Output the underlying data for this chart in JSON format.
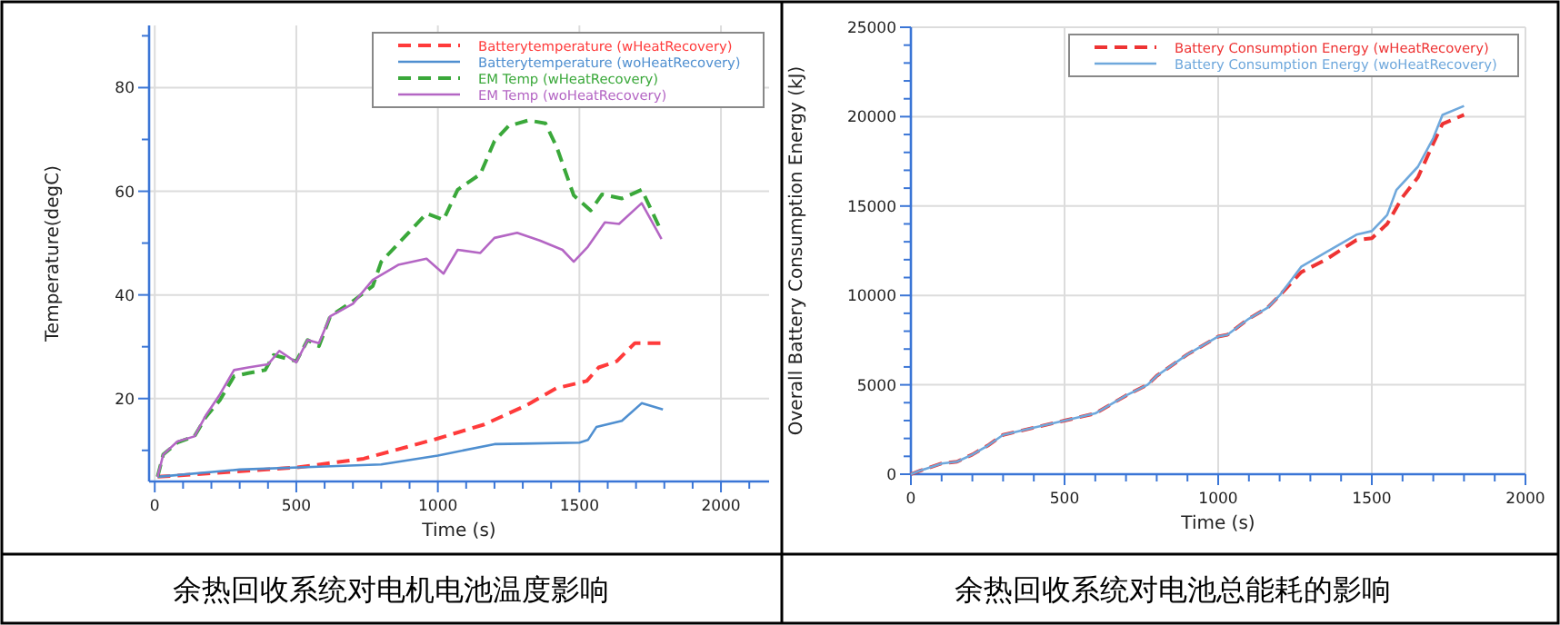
{
  "chart_data": [
    {
      "type": "line",
      "xlabel": "Time (s)",
      "ylabel": "Temperature(degC)",
      "annotations": [
        "余热回收系统对电机电池温度影响"
      ],
      "xlim": [
        -20,
        2170
      ],
      "ylim": [
        4,
        92
      ],
      "xticks": [
        0,
        {
          "value": 100,
          "label": null
        },
        {
          "value": 200,
          "label": null
        },
        {
          "value": 300,
          "label": null
        },
        {
          "value": 400,
          "label": null
        },
        500,
        {
          "value": 600,
          "label": null
        },
        {
          "value": 700,
          "label": null
        },
        {
          "value": 800,
          "label": null
        },
        {
          "value": 900,
          "label": null
        },
        1000,
        {
          "value": 1100,
          "label": null
        },
        {
          "value": 1200,
          "label": null
        },
        {
          "value": 1300,
          "label": null
        },
        {
          "value": 1400,
          "label": null
        },
        1500,
        {
          "value": 1600,
          "label": null
        },
        {
          "value": 1700,
          "label": null
        },
        {
          "value": 1800,
          "label": null
        },
        {
          "value": 1900,
          "label": null
        },
        2000,
        {
          "value": 2100,
          "label": null
        }
      ],
      "yticks": [
        {
          "value": 10,
          "label": null
        },
        20,
        {
          "value": 30,
          "label": null
        },
        40,
        {
          "value": 50,
          "label": null
        },
        60,
        {
          "value": 70,
          "label": null
        },
        80,
        {
          "value": 90,
          "label": null
        }
      ],
      "grid": true,
      "legend": "top right",
      "series": [
        {
          "name": "Batterytemperature (wHeatRecovery)",
          "color": "#ff3b3b",
          "line_style": "dashed",
          "x": [
            10,
            500,
            738,
            994,
            1164,
            1313,
            1419,
            1526,
            1568,
            1632,
            1696,
            1791
          ],
          "values": [
            4.9,
            6.7,
            8.4,
            12.2,
            15,
            18.7,
            22,
            23.4,
            26,
            27.2,
            30.7,
            30.7
          ]
        },
        {
          "name": "Batterytemperature (woHeatRecovery)",
          "color": "#4f8fd0",
          "line_style": "solid",
          "x": [
            10,
            300,
            600,
            800,
            1000,
            1200,
            1300,
            1500,
            1530,
            1560,
            1650,
            1720,
            1795
          ],
          "values": [
            4.9,
            6.3,
            6.9,
            7.3,
            9,
            11.2,
            11.3,
            11.5,
            12,
            14.5,
            15.7,
            19.1,
            17.9
          ]
        },
        {
          "name": "EM Temp (wHeatRecovery)",
          "color": "#3aa83a",
          "line_style": "dashed",
          "x": [
            10,
            30,
            80,
            140,
            180,
            230,
            280,
            330,
            390,
            420,
            500,
            540,
            580,
            620,
            700,
            770,
            800,
            900,
            960,
            1020,
            1070,
            1150,
            1200,
            1250,
            1320,
            1380,
            1420,
            1480,
            1540,
            1580,
            1650,
            1720,
            1760,
            1790
          ],
          "values": [
            4.9,
            9.2,
            11.5,
            12.7,
            16.4,
            19.7,
            24.3,
            24.9,
            25.5,
            28.4,
            27.2,
            31.3,
            30.1,
            35.9,
            38.8,
            41.7,
            46.4,
            52.2,
            55.7,
            54.5,
            60.3,
            63.3,
            69.7,
            72.6,
            73.7,
            73.1,
            68.5,
            59.2,
            56.3,
            59.4,
            58.6,
            60.3,
            55.7,
            52.2
          ]
        },
        {
          "name": "EM Temp (woHeatRecovery)",
          "color": "#b466c4",
          "line_style": "solid",
          "x": [
            10,
            30,
            80,
            140,
            180,
            230,
            280,
            330,
            400,
            440,
            500,
            540,
            580,
            620,
            700,
            770,
            860,
            960,
            1020,
            1070,
            1150,
            1200,
            1280,
            1360,
            1440,
            1480,
            1530,
            1590,
            1640,
            1720,
            1790
          ],
          "values": [
            4.9,
            9.2,
            11.7,
            12.7,
            16.7,
            20.8,
            25.5,
            26,
            26.6,
            29.2,
            27,
            31.3,
            30.7,
            35.9,
            38.3,
            42.9,
            45.8,
            47,
            44.1,
            48.7,
            48.1,
            51,
            52,
            50.5,
            48.7,
            46.4,
            49.3,
            54,
            53.7,
            57.7,
            50.8
          ]
        }
      ]
    },
    {
      "type": "line",
      "xlabel": "Time (s)",
      "ylabel": "Overall Battery Consumption Energy (kJ)",
      "annotations": [
        "余热回收系统对电池总能耗的影响"
      ],
      "xlim": [
        0,
        2000
      ],
      "ylim": [
        0,
        25000
      ],
      "xticks": [
        0,
        {
          "value": 100,
          "label": null
        },
        {
          "value": 200,
          "label": null
        },
        {
          "value": 300,
          "label": null
        },
        {
          "value": 400,
          "label": null
        },
        500,
        {
          "value": 600,
          "label": null
        },
        {
          "value": 700,
          "label": null
        },
        {
          "value": 800,
          "label": null
        },
        {
          "value": 900,
          "label": null
        },
        1000,
        {
          "value": 1100,
          "label": null
        },
        {
          "value": 1200,
          "label": null
        },
        {
          "value": 1300,
          "label": null
        },
        {
          "value": 1400,
          "label": null
        },
        1500,
        {
          "value": 1600,
          "label": null
        },
        {
          "value": 1700,
          "label": null
        },
        {
          "value": 1800,
          "label": null
        },
        {
          "value": 1900,
          "label": null
        },
        2000
      ],
      "yticks": [
        0,
        {
          "value": 1000,
          "label": null
        },
        {
          "value": 2000,
          "label": null
        },
        {
          "value": 3000,
          "label": null
        },
        {
          "value": 4000,
          "label": null
        },
        5000,
        {
          "value": 6000,
          "label": null
        },
        {
          "value": 7000,
          "label": null
        },
        {
          "value": 8000,
          "label": null
        },
        {
          "value": 9000,
          "label": null
        },
        10000,
        {
          "value": 11000,
          "label": null
        },
        {
          "value": 12000,
          "label": null
        },
        {
          "value": 13000,
          "label": null
        },
        {
          "value": 14000,
          "label": null
        },
        15000,
        {
          "value": 16000,
          "label": null
        },
        {
          "value": 17000,
          "label": null
        },
        {
          "value": 18000,
          "label": null
        },
        {
          "value": 19000,
          "label": null
        },
        20000,
        {
          "value": 21000,
          "label": null
        },
        {
          "value": 22000,
          "label": null
        },
        {
          "value": 23000,
          "label": null
        },
        {
          "value": 24000,
          "label": null
        },
        25000
      ],
      "grid": true,
      "legend": "top right",
      "series": [
        {
          "name": "Battery Consumption Energy (wHeatRecovery)",
          "color": "#ee3333",
          "line_style": "dashed",
          "x": [
            0,
            30,
            100,
            150,
            200,
            250,
            300,
            400,
            500,
            600,
            700,
            770,
            800,
            900,
            1000,
            1030,
            1100,
            1160,
            1200,
            1270,
            1350,
            1450,
            1500,
            1550,
            1600,
            1650,
            1700,
            1730,
            1800
          ],
          "values": [
            0,
            200,
            600,
            700,
            1100,
            1600,
            2200,
            2600,
            3000,
            3400,
            4400,
            5000,
            5500,
            6700,
            7700,
            7800,
            8700,
            9300,
            10000,
            11300,
            12000,
            13100,
            13200,
            14000,
            15500,
            16600,
            18500,
            19600,
            20100
          ]
        },
        {
          "name": "Battery Consumption Energy (woHeatRecovery)",
          "color": "#6fa8dc",
          "line_style": "solid",
          "x": [
            0,
            30,
            100,
            150,
            200,
            250,
            300,
            400,
            500,
            600,
            700,
            770,
            800,
            900,
            1000,
            1030,
            1100,
            1160,
            1200,
            1270,
            1350,
            1450,
            1500,
            1550,
            1580,
            1650,
            1700,
            1730,
            1800
          ],
          "values": [
            0,
            200,
            600,
            700,
            1100,
            1600,
            2200,
            2600,
            3000,
            3400,
            4400,
            5000,
            5500,
            6700,
            7700,
            7800,
            8700,
            9300,
            10000,
            11600,
            12400,
            13400,
            13600,
            14500,
            15900,
            17200,
            18800,
            20100,
            20600
          ]
        }
      ]
    }
  ]
}
